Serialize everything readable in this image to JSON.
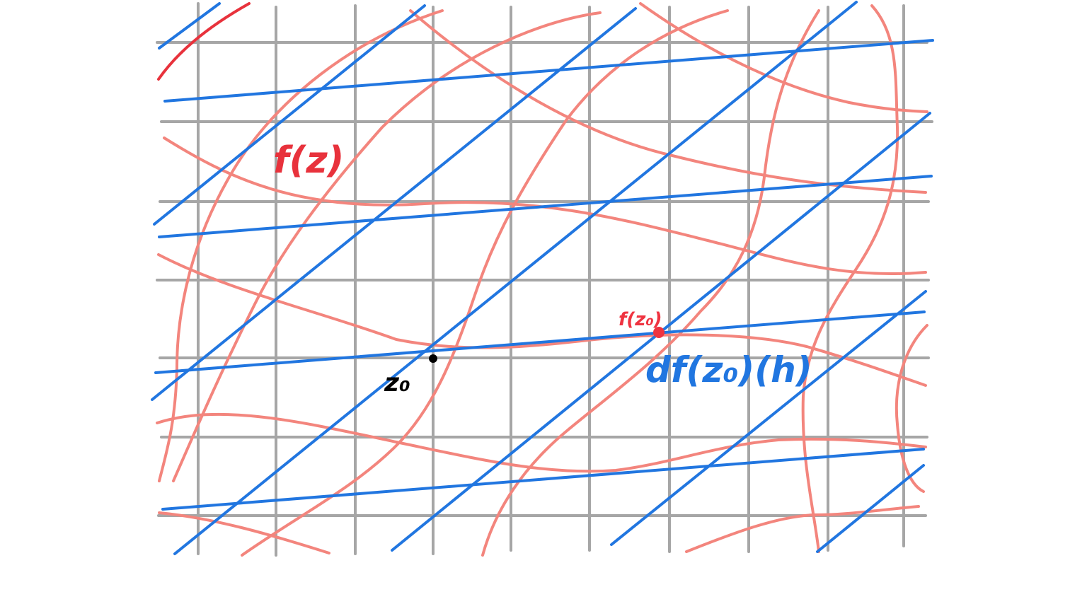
{
  "diagram": {
    "labels": {
      "function": "f(z)",
      "base_point": "z₀",
      "image_point": "f(z₀)",
      "differential": "df(z₀)(h)"
    },
    "colors": {
      "grid": "#a6a6a6",
      "curves": "#f3857d",
      "curve_accent": "#e8323c",
      "tangent_lines": "#2176e0",
      "base_point": "#000000",
      "image_point": "#ef3340",
      "background": "#ffffff"
    }
  }
}
